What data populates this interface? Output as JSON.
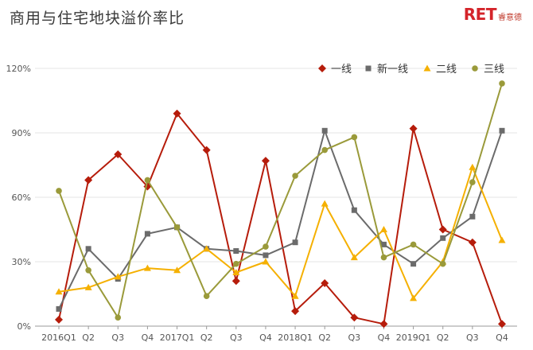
{
  "title": "商用与住宅地块溢价率比",
  "logo": {
    "mark": "RET",
    "text": "睿意德"
  },
  "colors": {
    "一线": "#b61c0b",
    "新一线": "#6b6b6b",
    "二线": "#f5b000",
    "三线": "#9a9a3a"
  },
  "chart_data": {
    "type": "line",
    "categories": [
      "2016Q1",
      "Q2",
      "Q3",
      "Q4",
      "2017Q1",
      "Q2",
      "Q3",
      "Q4",
      "2018Q1",
      "Q2",
      "Q3",
      "Q4",
      "2019Q1",
      "Q2",
      "Q3",
      "Q4"
    ],
    "ylim": [
      0,
      120
    ],
    "yticks": [
      "0%",
      "30%",
      "60%",
      "90%",
      "120%"
    ],
    "legend_position": "top-right",
    "series": [
      {
        "name": "一线",
        "marker": "diamond",
        "values": [
          3,
          68,
          80,
          65,
          99,
          82,
          21,
          77,
          7,
          20,
          4,
          1,
          92,
          45,
          39,
          1
        ]
      },
      {
        "name": "新一线",
        "marker": "square",
        "values": [
          8,
          36,
          22,
          43,
          46,
          36,
          35,
          33,
          39,
          91,
          54,
          38,
          29,
          41,
          51,
          91
        ]
      },
      {
        "name": "二线",
        "marker": "triangle",
        "values": [
          16,
          18,
          23,
          27,
          26,
          36,
          25,
          30,
          14,
          57,
          32,
          45,
          13,
          30,
          74,
          40
        ]
      },
      {
        "name": "三线",
        "marker": "circle",
        "values": [
          63,
          26,
          4,
          68,
          46,
          14,
          29,
          37,
          70,
          82,
          88,
          32,
          38,
          29,
          67,
          113
        ]
      }
    ]
  }
}
